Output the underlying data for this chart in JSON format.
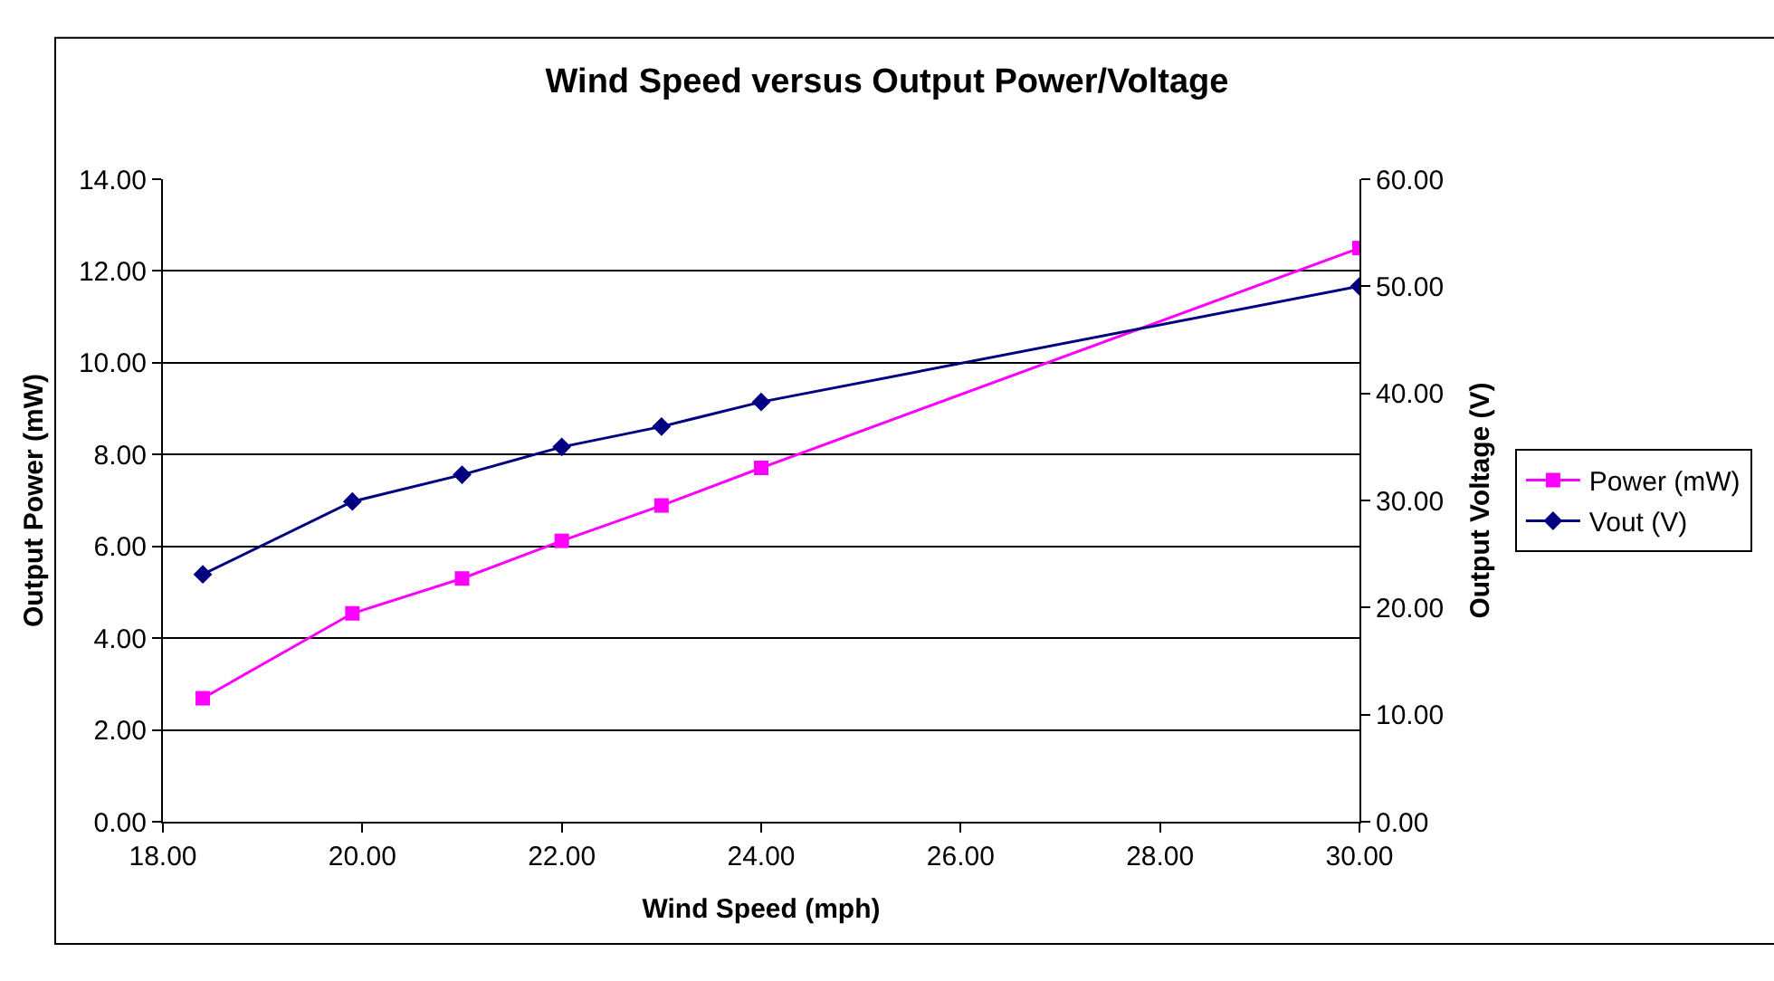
{
  "chart_data": {
    "type": "line",
    "title": "Wind Speed versus Output Power/Voltage",
    "xlabel": "Wind Speed (mph)",
    "ylabel": "Output Power (mW)",
    "y2label": "Output Voltage (V)",
    "series": [
      {
        "name": "Power (mW)",
        "color": "#ff00ff",
        "marker": "square",
        "x": [
          18.4,
          19.9,
          21.0,
          22.0,
          23.0,
          24.0,
          30.0
        ],
        "values": [
          2.69,
          4.54,
          5.3,
          6.12,
          6.89,
          7.71,
          12.5
        ]
      },
      {
        "name": "Vout (V)",
        "color": "#000080",
        "marker": "diamond",
        "axis": "y2",
        "x": [
          18.4,
          19.9,
          21.0,
          22.0,
          23.0,
          24.0,
          30.0
        ],
        "values": [
          23.1,
          29.9,
          32.4,
          35.0,
          36.9,
          39.2,
          50.0
        ]
      }
    ],
    "xlim": [
      18,
      30
    ],
    "xticks": [
      {
        "value": 18,
        "label": "18.00"
      },
      {
        "value": 20,
        "label": "20.00"
      },
      {
        "value": 22,
        "label": "22.00"
      },
      {
        "value": 24,
        "label": "24.00"
      },
      {
        "value": 26,
        "label": "26.00"
      },
      {
        "value": 28,
        "label": "28.00"
      },
      {
        "value": 30,
        "label": "30.00"
      }
    ],
    "ylim": [
      0,
      14
    ],
    "yticks": [
      {
        "value": 0,
        "label": "0.00"
      },
      {
        "value": 2,
        "label": "2.00"
      },
      {
        "value": 4,
        "label": "4.00"
      },
      {
        "value": 6,
        "label": "6.00"
      },
      {
        "value": 8,
        "label": "8.00"
      },
      {
        "value": 10,
        "label": "10.00"
      },
      {
        "value": 12,
        "label": "12.00"
      },
      {
        "value": 14,
        "label": "14.00"
      }
    ],
    "y2lim": [
      0,
      60
    ],
    "y2ticks": [
      {
        "value": 0,
        "label": "0.00"
      },
      {
        "value": 10,
        "label": "10.00"
      },
      {
        "value": 20,
        "label": "20.00"
      },
      {
        "value": 30,
        "label": "30.00"
      },
      {
        "value": 40,
        "label": "40.00"
      },
      {
        "value": 50,
        "label": "50.00"
      },
      {
        "value": 60,
        "label": "60.00"
      }
    ],
    "grid": "y",
    "legend": "right",
    "line_style": "solid"
  }
}
